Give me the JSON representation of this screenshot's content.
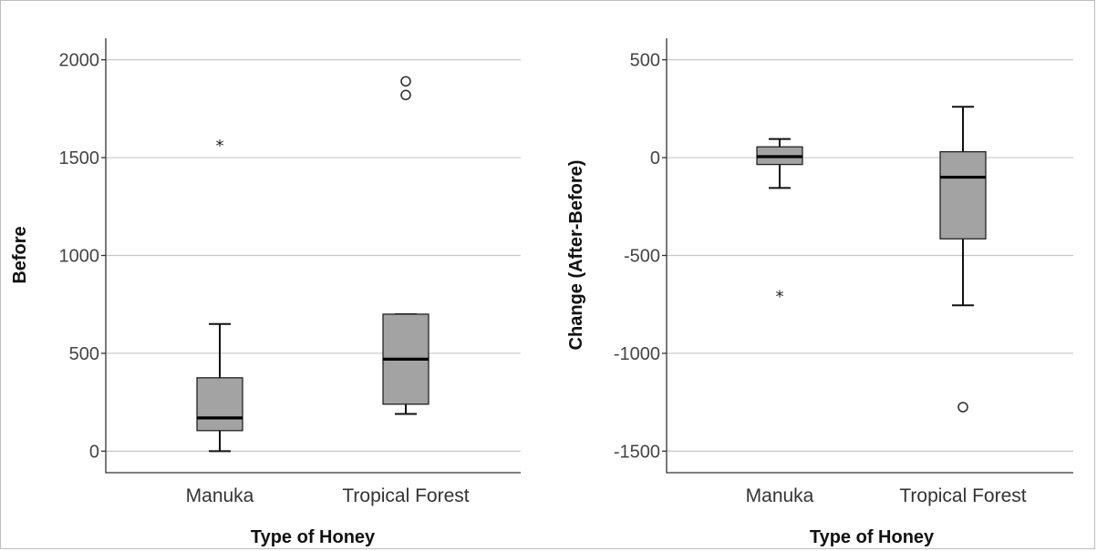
{
  "chart_data": [
    {
      "type": "box",
      "xlabel": "Type of Honey",
      "ylabel": "Before",
      "ylim": [
        -110,
        2110
      ],
      "yticks": [
        0,
        500,
        1000,
        1500,
        2000
      ],
      "yticklabels": [
        "0",
        "500",
        "1000",
        "1500",
        "2000"
      ],
      "grid": true,
      "categories": [
        "Manuka",
        "Tropical Forest"
      ],
      "boxes": [
        {
          "category": "Manuka",
          "whisker_low": 0,
          "q1": 105,
          "median": 170,
          "q3": 375,
          "whisker_high": 650,
          "outliers": [],
          "extremes": [
            1570
          ]
        },
        {
          "category": "Tropical Forest",
          "whisker_low": 190,
          "q1": 240,
          "median": 470,
          "q3": 700,
          "whisker_high": 700,
          "outliers": [
            1820,
            1890
          ],
          "extremes": []
        }
      ]
    },
    {
      "type": "box",
      "xlabel": "Type of Honey",
      "ylabel": "Change (After-Before)",
      "ylim": [
        -1610,
        610
      ],
      "yticks": [
        500,
        0,
        -500,
        -1000,
        -1500
      ],
      "yticklabels": [
        "500",
        "0",
        "-500",
        "-1000",
        "-1500"
      ],
      "grid": true,
      "categories": [
        "Manuka",
        "Tropical Forest"
      ],
      "boxes": [
        {
          "category": "Manuka",
          "whisker_low": -155,
          "q1": -35,
          "median": 5,
          "q3": 55,
          "whisker_high": 95,
          "outliers": [],
          "extremes": [
            -700
          ]
        },
        {
          "category": "Tropical Forest",
          "whisker_low": -755,
          "q1": -415,
          "median": -100,
          "q3": 30,
          "whisker_high": 260,
          "outliers": [
            -1275
          ],
          "extremes": []
        }
      ]
    }
  ]
}
